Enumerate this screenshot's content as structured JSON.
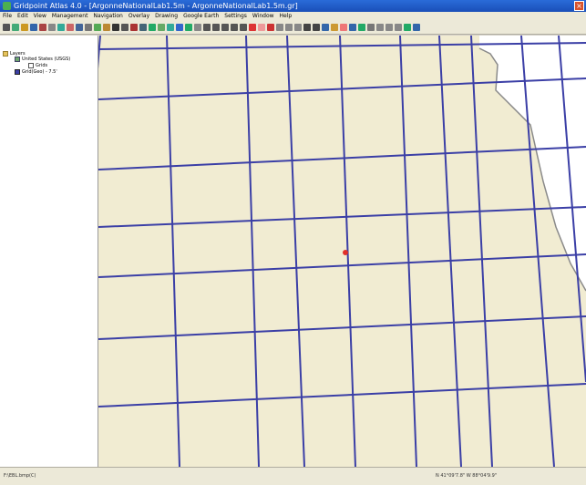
{
  "window": {
    "title": "Gridpoint Atlas 4.0 - [ArgonneNationalLab1.5m - ArgonneNationalLab1.5m.gr]",
    "close_symbol": "×"
  },
  "menu": [
    "File",
    "Edit",
    "View",
    "Management",
    "Navigation",
    "Overlay",
    "Drawing",
    "Google Earth",
    "Settings",
    "Window",
    "Help"
  ],
  "toolbar": {
    "icon_colors": [
      "#555",
      "#4a7",
      "#c92",
      "#36a",
      "#a44",
      "#888",
      "#3a9",
      "#c66",
      "#469",
      "#777",
      "#5a5",
      "#b83",
      "#333",
      "#555",
      "#a33",
      "#467",
      "#2a6",
      "#6a6",
      "#3a9",
      "#36c",
      "#2a6",
      "#888",
      "#555",
      "#555",
      "#555",
      "#555",
      "#555",
      "#d33",
      "#e99",
      "#c33",
      "#888",
      "#888",
      "#888",
      "#444",
      "#444",
      "#36a",
      "#c93",
      "#e77",
      "#36a",
      "#2a6",
      "#777",
      "#888",
      "#888",
      "#888",
      "#2a6",
      "#36a"
    ]
  },
  "tree": {
    "root_label": "Layers",
    "items": [
      {
        "label": "United States (USGS)",
        "indent": 2
      },
      {
        "label": "Grids",
        "indent": 3
      },
      {
        "label": "Grid(Geo) - 7.5'",
        "indent": 2
      }
    ]
  },
  "map": {
    "colors": {
      "land": "#f1ecd2",
      "water": "#ffffff",
      "grid": "#3b3fa6",
      "shore": "#8a8a8a",
      "marker": "#e0302a"
    },
    "grid_lines": {
      "vertical_count": 10,
      "horizontal_count": 7
    },
    "marker_label": "current location"
  },
  "status": {
    "left": "F:\\EBL.bmp(C)",
    "right": "N 41°09'7.8\"  W 88°04'9.9\""
  }
}
